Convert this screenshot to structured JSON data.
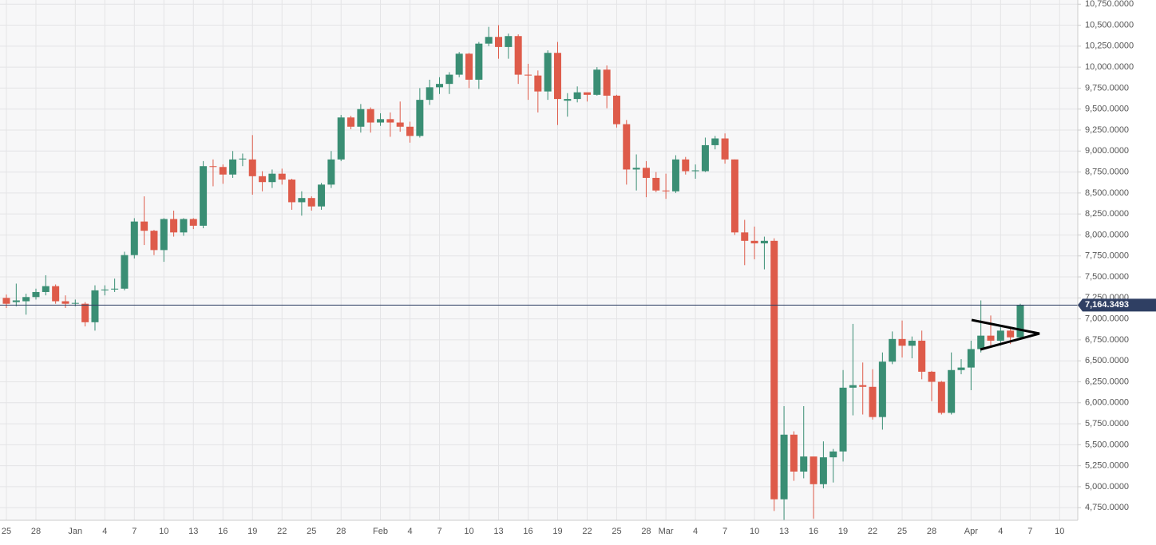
{
  "chart_data": {
    "type": "candlestick",
    "categories": [
      "25",
      null,
      null,
      "28",
      null,
      null,
      null,
      "Jan",
      null,
      null,
      "4",
      null,
      null,
      "7",
      null,
      null,
      "10",
      null,
      null,
      "13",
      null,
      null,
      "16",
      null,
      null,
      "19",
      null,
      null,
      "22",
      null,
      null,
      "25",
      null,
      null,
      "28",
      null,
      null,
      null,
      "Feb",
      null,
      null,
      "4",
      null,
      null,
      "7",
      null,
      null,
      "10",
      null,
      null,
      "13",
      null,
      null,
      "16",
      null,
      null,
      "19",
      null,
      null,
      "22",
      null,
      null,
      "25",
      null,
      null,
      "28",
      null,
      "Mar",
      null,
      null,
      "4",
      null,
      null,
      "7",
      null,
      null,
      "10",
      null,
      null,
      "13",
      null,
      null,
      "16",
      null,
      null,
      "19",
      null,
      null,
      "22",
      null,
      null,
      "25",
      null,
      null,
      "28",
      null,
      null,
      null,
      "Apr",
      null,
      null,
      "4",
      null,
      null,
      "7",
      null,
      null,
      "10"
    ],
    "open": [
      7250,
      7200,
      7210,
      7260,
      7320,
      7390,
      7210,
      7180,
      7180,
      6960,
      7340,
      7350,
      7360,
      7760,
      8160,
      8050,
      7820,
      8190,
      8030,
      8190,
      8110,
      8820,
      8810,
      8720,
      8900,
      8900,
      8700,
      8630,
      8730,
      8660,
      8390,
      8440,
      8340,
      8600,
      8900,
      9400,
      9290,
      9500,
      9340,
      9380,
      9340,
      9290,
      9180,
      9610,
      9760,
      9800,
      9910,
      10160,
      9850,
      10280,
      10360,
      10240,
      10370,
      9910,
      9900,
      9710,
      10170,
      9600,
      9620,
      9700,
      9670,
      9970,
      9660,
      9320,
      8780,
      8800,
      8680,
      8530,
      8520,
      8900,
      8760,
      8760,
      9070,
      9150,
      8900,
      8030,
      7930,
      7900,
      7930,
      4850,
      5620,
      5180,
      5360,
      5030,
      5350,
      5420,
      6180,
      6210,
      6190,
      5830,
      6490,
      6760,
      6680,
      6740,
      6370,
      6250,
      5880,
      6390,
      6420,
      6640,
      6800,
      6740,
      6860,
      6780,
      null,
      null,
      null,
      null
    ],
    "high": [
      7290,
      7420,
      7300,
      7360,
      7520,
      7410,
      7280,
      7230,
      7200,
      7400,
      7400,
      7480,
      7800,
      8200,
      8460,
      8060,
      8200,
      8290,
      8200,
      8200,
      8880,
      8900,
      8840,
      9000,
      8970,
      9190,
      8760,
      8780,
      8790,
      8670,
      8520,
      8460,
      8620,
      9000,
      9430,
      9420,
      9560,
      9520,
      9450,
      9460,
      9590,
      9350,
      9750,
      9850,
      9880,
      9940,
      10180,
      10170,
      10300,
      10480,
      10500,
      10400,
      10390,
      10040,
      9960,
      10200,
      10300,
      9690,
      9770,
      9690,
      10000,
      10020,
      9670,
      9370,
      8960,
      8880,
      8750,
      8730,
      8950,
      8930,
      8840,
      9160,
      9180,
      9210,
      8900,
      8180,
      8100,
      7980,
      7960,
      5960,
      5660,
      5960,
      5360,
      5540,
      5450,
      6390,
      6940,
      6480,
      6400,
      6600,
      6850,
      6980,
      6790,
      6860,
      6380,
      6260,
      6600,
      6520,
      6740,
      7220,
      7040,
      6900,
      6890,
      7180,
      null,
      null,
      null,
      null
    ],
    "low": [
      7130,
      7150,
      7050,
      7230,
      7280,
      7180,
      7130,
      7150,
      6910,
      6860,
      7280,
      7320,
      7340,
      7720,
      7880,
      7760,
      7680,
      7980,
      7990,
      8070,
      8080,
      8580,
      8610,
      8680,
      8820,
      8480,
      8520,
      8560,
      8600,
      8300,
      8230,
      8290,
      8300,
      8560,
      8880,
      9260,
      9220,
      9220,
      9300,
      9170,
      9230,
      9100,
      9160,
      9550,
      9680,
      9680,
      9880,
      9750,
      9740,
      10250,
      10100,
      10100,
      9800,
      9610,
      9460,
      9610,
      9310,
      9410,
      9580,
      9590,
      9660,
      9510,
      9280,
      8600,
      8530,
      8450,
      8510,
      8430,
      8500,
      8720,
      8670,
      8750,
      9020,
      8850,
      8000,
      7640,
      7710,
      7590,
      4710,
      4600,
      5070,
      5100,
      4620,
      4980,
      5050,
      5300,
      5850,
      5860,
      5800,
      5680,
      6460,
      6540,
      6530,
      6280,
      6020,
      5860,
      5860,
      6340,
      6150,
      6600,
      6660,
      6680,
      6700,
      6760,
      null,
      null,
      null,
      null
    ],
    "close": [
      7180,
      7220,
      7260,
      7320,
      7390,
      7210,
      7180,
      7190,
      6960,
      7340,
      7350,
      7360,
      7760,
      8160,
      8050,
      7820,
      8190,
      8030,
      8190,
      8110,
      8820,
      8810,
      8720,
      8900,
      8910,
      8700,
      8630,
      8730,
      8660,
      8390,
      8440,
      8340,
      8600,
      8900,
      9400,
      9290,
      9500,
      9340,
      9380,
      9340,
      9290,
      9180,
      9610,
      9760,
      9800,
      9910,
      10160,
      9850,
      10280,
      10360,
      10240,
      10370,
      9910,
      9900,
      9710,
      10170,
      9620,
      9620,
      9700,
      9670,
      9970,
      9660,
      9320,
      8780,
      8800,
      8680,
      8530,
      8520,
      8900,
      8760,
      8770,
      9070,
      9150,
      8900,
      8030,
      7930,
      7900,
      7930,
      4850,
      5620,
      5180,
      5360,
      5030,
      5350,
      5420,
      6180,
      6210,
      6190,
      5830,
      6490,
      6760,
      6680,
      6740,
      6370,
      6250,
      5880,
      6390,
      6420,
      6640,
      6800,
      6740,
      6860,
      6780,
      7164,
      null,
      null,
      null,
      null
    ],
    "up_color": "#3a8e74",
    "down_color": "#de5b4a",
    "last_price": {
      "value": 7164.3493,
      "label": "7,164.3493"
    },
    "ylim": [
      4600,
      10800
    ],
    "yticks": [
      {
        "value": 4750,
        "label": "4,750.0000"
      },
      {
        "value": 5000,
        "label": "5,000.0000"
      },
      {
        "value": 5250,
        "label": "5,250.0000"
      },
      {
        "value": 5500,
        "label": "5,500.0000"
      },
      {
        "value": 5750,
        "label": "5,750.0000"
      },
      {
        "value": 6000,
        "label": "6,000.0000"
      },
      {
        "value": 6250,
        "label": "6,250.0000"
      },
      {
        "value": 6500,
        "label": "6,500.0000"
      },
      {
        "value": 6750,
        "label": "6,750.0000"
      },
      {
        "value": 7000,
        "label": "7,000.0000"
      },
      {
        "value": 7250,
        "label": "7,250.0000"
      },
      {
        "value": 7500,
        "label": "7,500.0000"
      },
      {
        "value": 7750,
        "label": "7,750.0000"
      },
      {
        "value": 8000,
        "label": "8,000.0000"
      },
      {
        "value": 8250,
        "label": "8,250.0000"
      },
      {
        "value": 8500,
        "label": "8,500.0000"
      },
      {
        "value": 8750,
        "label": "8,750.0000"
      },
      {
        "value": 9000,
        "label": "9,000.0000"
      },
      {
        "value": 9250,
        "label": "9,250.0000"
      },
      {
        "value": 9500,
        "label": "9,500.0000"
      },
      {
        "value": 9750,
        "label": "9,750.0000"
      },
      {
        "value": 10000,
        "label": "10,000.0000"
      },
      {
        "value": 10250,
        "label": "10,250.0000"
      },
      {
        "value": 10500,
        "label": "10,500.0000"
      },
      {
        "value": 10750,
        "label": "10,750.0000"
      }
    ],
    "grid": true
  }
}
